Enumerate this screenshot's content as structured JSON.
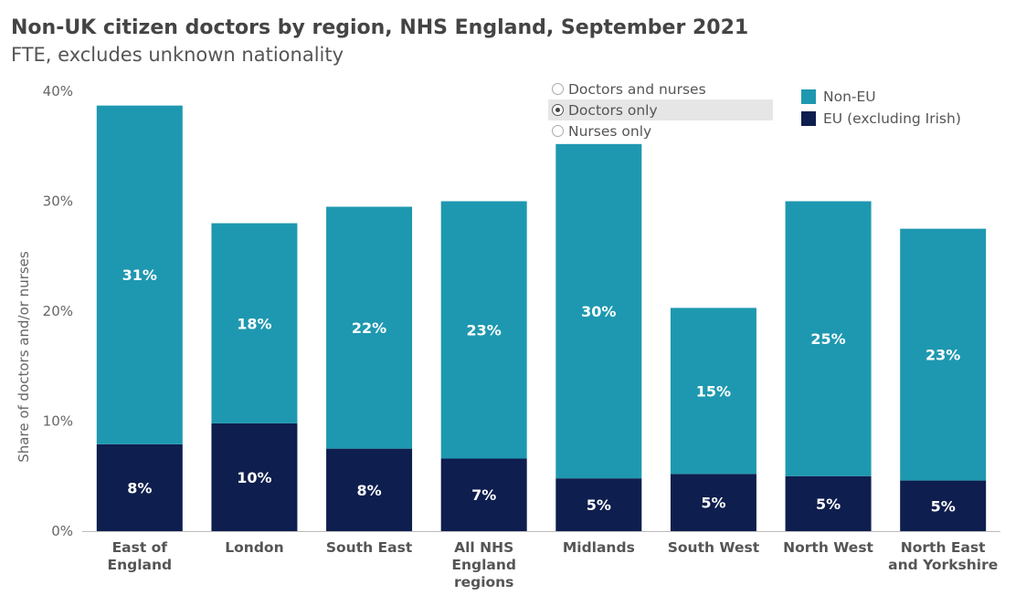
{
  "title": "Non-UK citizen doctors by region, NHS England, September 2021",
  "subtitle": "FTE, excludes unknown nationality",
  "radio_options": [
    {
      "label": "Doctors and nurses",
      "selected": false
    },
    {
      "label": "Doctors only",
      "selected": true
    },
    {
      "label": "Nurses only",
      "selected": false
    }
  ],
  "legend": [
    {
      "label": "Non-EU",
      "color": "#1e98b0"
    },
    {
      "label": "EU (excluding Irish)",
      "color": "#0e1e4e"
    }
  ],
  "chart_data": {
    "type": "bar",
    "stacked": true,
    "categories": [
      [
        "East of",
        "England"
      ],
      [
        "London"
      ],
      [
        "South East"
      ],
      [
        "All NHS",
        "England",
        "regions"
      ],
      [
        "Midlands"
      ],
      [
        "South West"
      ],
      [
        "North West"
      ],
      [
        "North East",
        "and Yorkshire"
      ]
    ],
    "series": [
      {
        "name": "EU (excluding Irish)",
        "color": "#0e1e4e",
        "values": [
          7.9,
          9.8,
          7.5,
          6.6,
          4.8,
          5.2,
          5.0,
          4.6
        ],
        "labels": [
          "8%",
          "10%",
          "8%",
          "7%",
          "5%",
          "5%",
          "5%",
          "5%"
        ]
      },
      {
        "name": "Non-EU",
        "color": "#1e98b0",
        "values": [
          30.8,
          18.2,
          22.0,
          23.4,
          30.4,
          15.1,
          25.0,
          22.9
        ],
        "labels": [
          "31%",
          "18%",
          "22%",
          "23%",
          "30%",
          "15%",
          "25%",
          "23%"
        ]
      }
    ],
    "ylabel": "Share of doctors and/or nurses",
    "ylim": [
      0,
      40
    ],
    "yticks": [
      0,
      10,
      20,
      30,
      40
    ],
    "ytick_labels": [
      "0%",
      "10%",
      "20%",
      "30%",
      "40%"
    ],
    "grid": false,
    "legend_position": "top-right"
  }
}
